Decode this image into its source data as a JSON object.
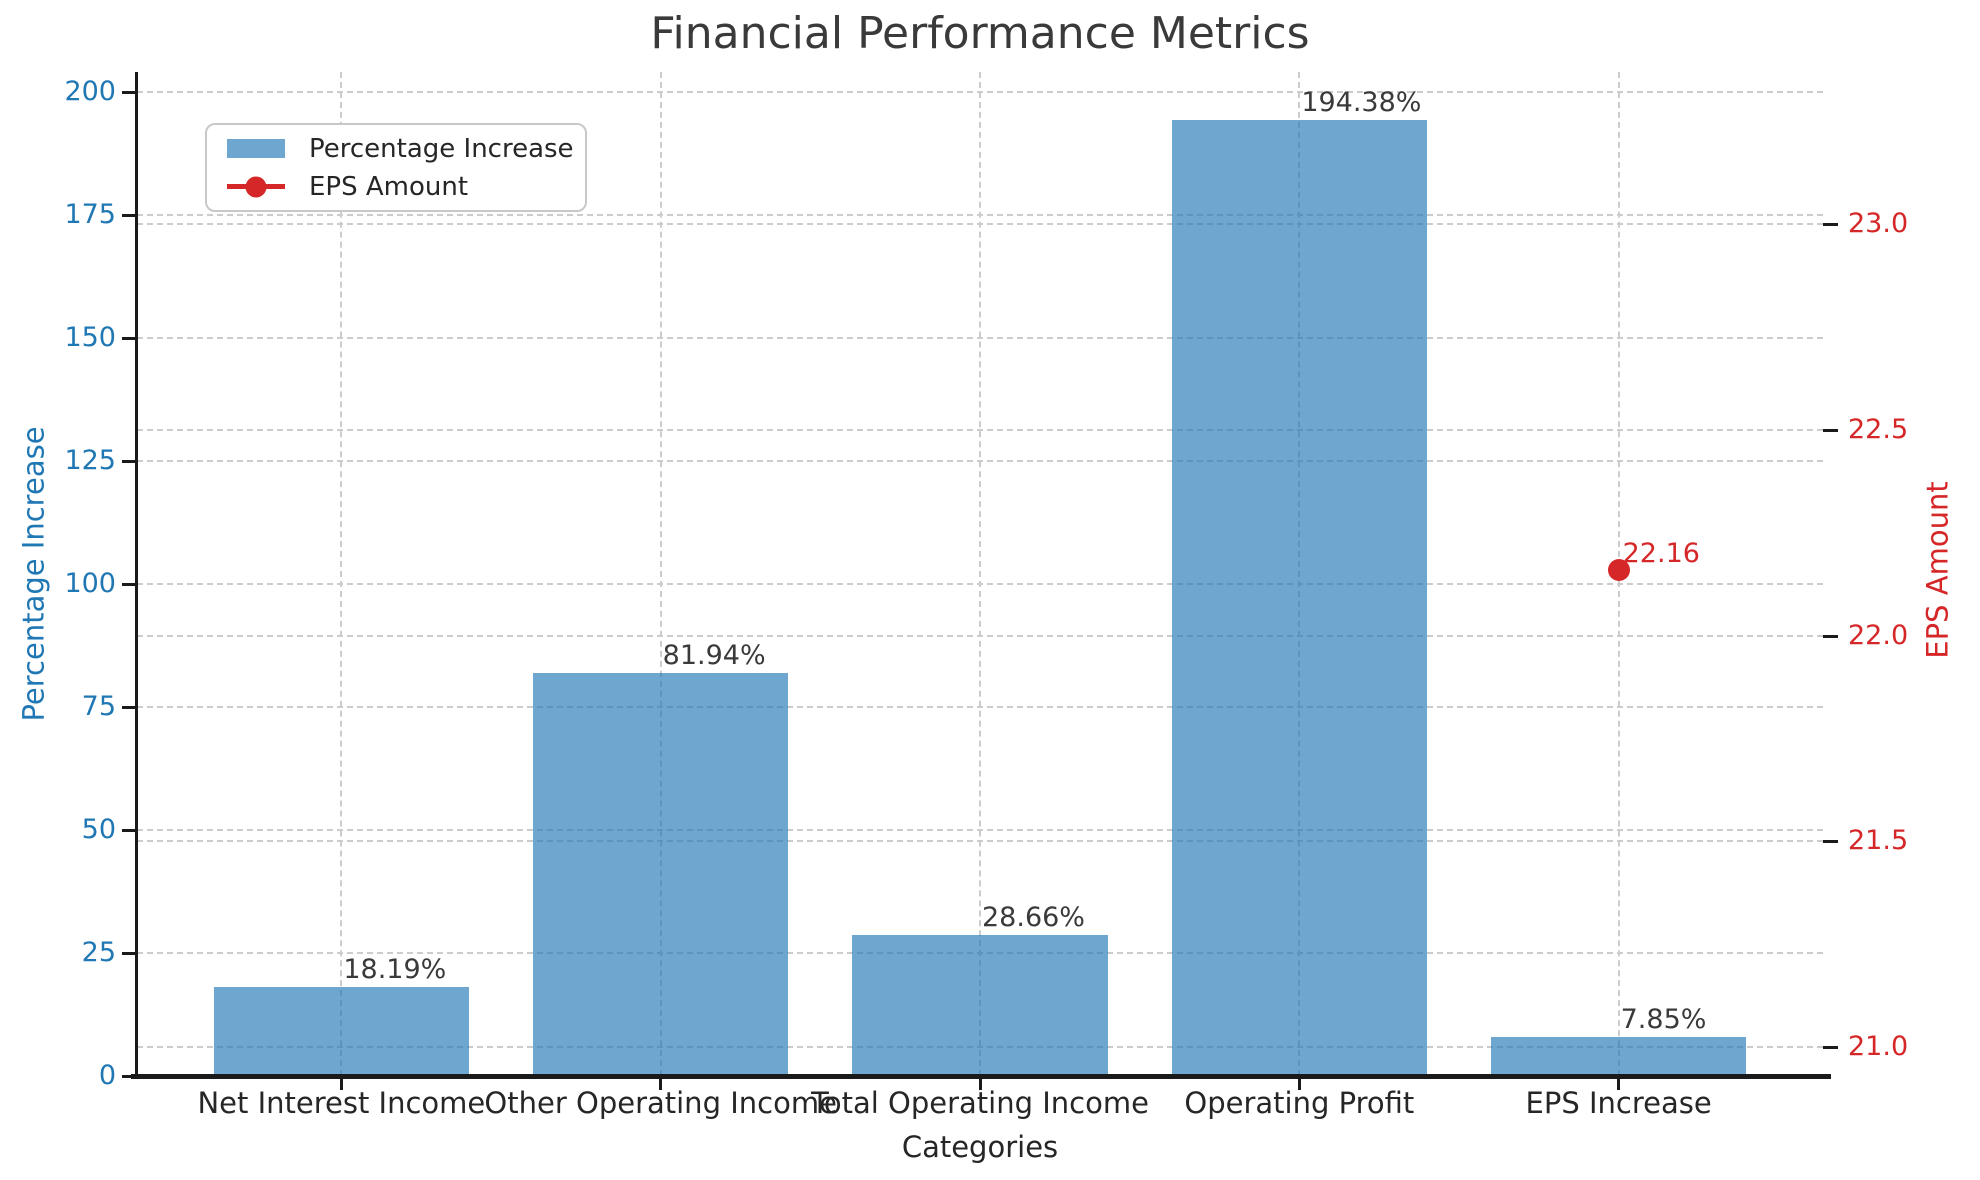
{
  "chart_data": {
    "type": "bar",
    "title": "Financial Performance Metrics",
    "xlabel": "Categories",
    "ylabel_left": "Percentage Increase",
    "ylabel_right": "EPS Amount",
    "categories": [
      "Net Interest Income",
      "Other Operating Income",
      "Total Operating Income",
      "Operating Profit",
      "EPS Increase"
    ],
    "series": [
      {
        "name": "Percentage Increase",
        "type": "bar",
        "axis": "left",
        "values": [
          18.19,
          81.94,
          28.66,
          194.38,
          7.85
        ],
        "value_labels": [
          "18.19%",
          "81.94%",
          "28.66%",
          "194.38%",
          "7.85%"
        ]
      },
      {
        "name": "EPS Amount",
        "type": "line",
        "axis": "right",
        "values": [
          null,
          null,
          null,
          null,
          22.16
        ],
        "value_labels": [
          null,
          null,
          null,
          null,
          "22.16"
        ]
      }
    ],
    "left_axis": {
      "range": [
        0,
        204.1
      ],
      "ticks": [
        0,
        25,
        50,
        75,
        100,
        125,
        150,
        175,
        200
      ],
      "color": "#1f77b4"
    },
    "right_axis": {
      "range": [
        20.93,
        23.37
      ],
      "ticks": [
        21.0,
        21.5,
        22.0,
        22.5,
        23.0
      ],
      "color": "#d62728"
    },
    "x_range": [
      -0.64,
      4.64
    ],
    "bar_width": 0.8,
    "grid": true,
    "legend_position": "upper left",
    "colors": {
      "bar_fill": "#73a8d1",
      "line": "#d62728",
      "grid": "#cccccc",
      "left_tick_text": "#1f77b4",
      "right_tick_text": "#d62728",
      "title_text": "#3a3a3a",
      "value_label_text": "#3a3a3a"
    }
  }
}
